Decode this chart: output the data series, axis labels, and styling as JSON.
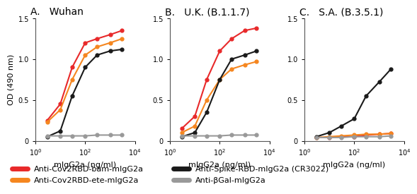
{
  "panels": [
    {
      "label": "A.",
      "title": "Wuhan"
    },
    {
      "label": "B.",
      "title": "U.K. (B.1.1.7)"
    },
    {
      "label": "C.",
      "title": "S.A. (B.3.5.1)"
    }
  ],
  "series": {
    "red": {
      "color": "#e8292a",
      "label": "Anti-Cov2RBD-bam-mIgG2a",
      "data": [
        [
          [
            3,
            10,
            30,
            100,
            300,
            1000,
            3000
          ],
          [
            0.25,
            0.45,
            0.9,
            1.2,
            1.25,
            1.3,
            1.35
          ]
        ],
        [
          [
            3,
            10,
            30,
            100,
            300,
            1000,
            3000
          ],
          [
            0.15,
            0.3,
            0.75,
            1.1,
            1.25,
            1.35,
            1.38
          ]
        ],
        [
          [
            3,
            10,
            30,
            100,
            300,
            1000,
            3000
          ],
          [
            0.04,
            0.04,
            0.05,
            0.05,
            0.07,
            0.08,
            0.09
          ]
        ]
      ]
    },
    "orange": {
      "color": "#f5861f",
      "label": "Anti-Cov2RBD-ete-mIgG2a",
      "data": [
        [
          [
            3,
            10,
            30,
            100,
            300,
            1000,
            3000
          ],
          [
            0.23,
            0.38,
            0.75,
            1.05,
            1.15,
            1.2,
            1.25
          ]
        ],
        [
          [
            3,
            10,
            30,
            100,
            300,
            1000,
            3000
          ],
          [
            0.1,
            0.18,
            0.5,
            0.75,
            0.88,
            0.93,
            0.97
          ]
        ],
        [
          [
            3,
            10,
            30,
            100,
            300,
            1000,
            3000
          ],
          [
            0.04,
            0.05,
            0.06,
            0.07,
            0.08,
            0.08,
            0.09
          ]
        ]
      ]
    },
    "black": {
      "color": "#1a1a1a",
      "label": "Anti-Spike-RBD-mIgG2a (CR3022)",
      "data": [
        [
          [
            3,
            10,
            30,
            100,
            300,
            1000,
            3000
          ],
          [
            0.05,
            0.12,
            0.55,
            0.9,
            1.05,
            1.1,
            1.12
          ]
        ],
        [
          [
            3,
            10,
            30,
            100,
            300,
            1000,
            3000
          ],
          [
            0.05,
            0.1,
            0.35,
            0.75,
            1.0,
            1.05,
            1.1
          ]
        ],
        [
          [
            3,
            10,
            30,
            100,
            300,
            1000,
            3000
          ],
          [
            0.05,
            0.1,
            0.18,
            0.27,
            0.55,
            0.72,
            0.88
          ]
        ]
      ]
    },
    "gray": {
      "color": "#999999",
      "label": "Anti-βGal-mIgG2a",
      "data": [
        [
          [
            3,
            10,
            30,
            100,
            300,
            1000,
            3000
          ],
          [
            0.06,
            0.06,
            0.06,
            0.06,
            0.07,
            0.07,
            0.07
          ]
        ],
        [
          [
            3,
            10,
            30,
            100,
            300,
            1000,
            3000
          ],
          [
            0.06,
            0.06,
            0.06,
            0.06,
            0.07,
            0.07,
            0.07
          ]
        ],
        [
          [
            3,
            10,
            30,
            100,
            300,
            1000,
            3000
          ],
          [
            0.04,
            0.04,
            0.04,
            0.05,
            0.05,
            0.05,
            0.06
          ]
        ]
      ]
    }
  },
  "ylim": [
    0,
    1.5
  ],
  "yticks": [
    0.0,
    0.5,
    1.0,
    1.5
  ],
  "xlim": [
    1,
    10000
  ],
  "ylabel": "OD (490 nm)",
  "xlabel": "mIgG2a (ng/ml)",
  "background_color": "#ffffff",
  "title_fontsize": 10,
  "axis_fontsize": 8,
  "legend_fontsize": 8
}
